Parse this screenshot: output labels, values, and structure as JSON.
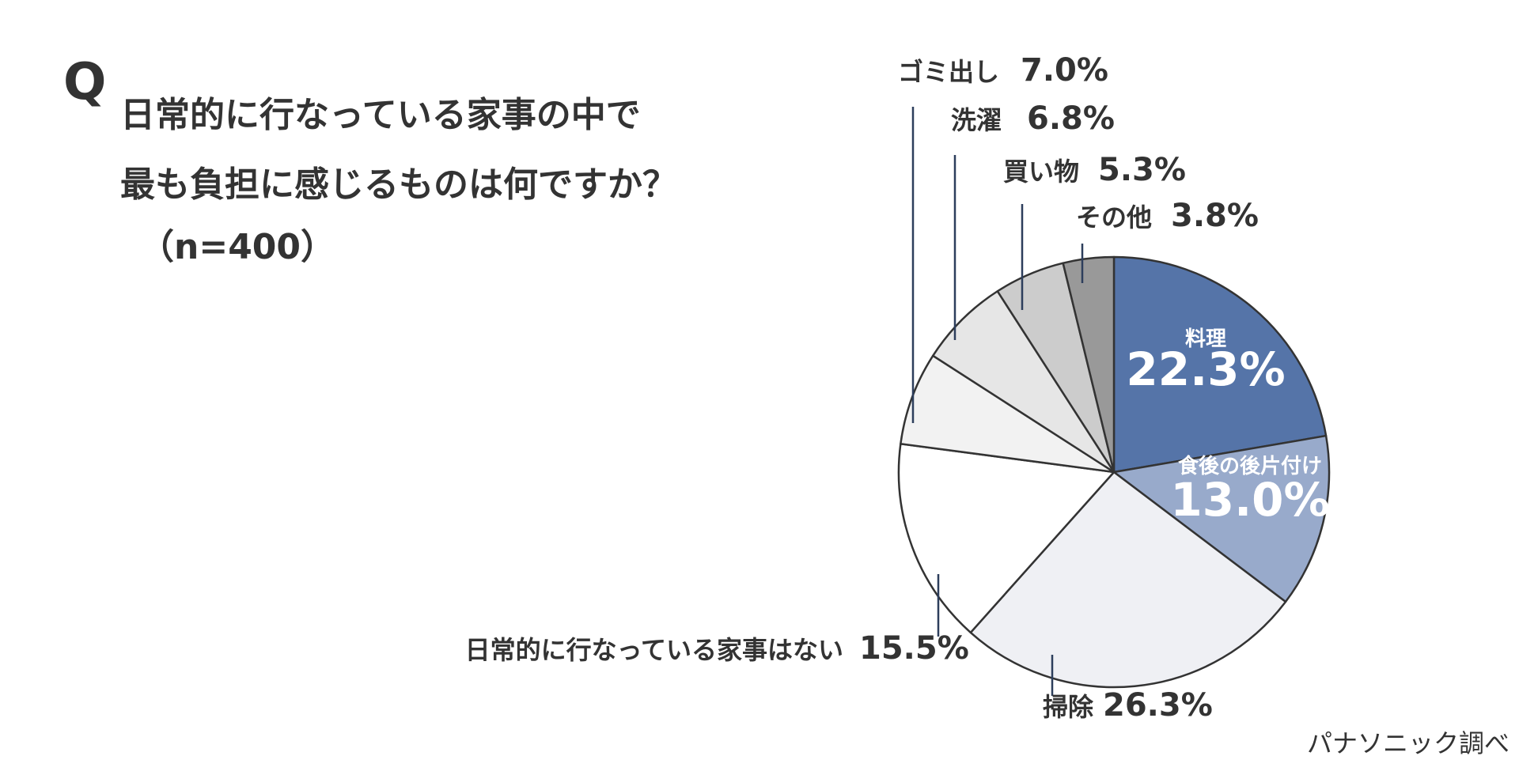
{
  "question": {
    "mark": "Q",
    "line1": "日常的に行なっている家事の中で",
    "line2": "最も負担に感じるものは何ですか？",
    "sample": "（n=400）"
  },
  "source": "パナソニック調べ",
  "chart_data": {
    "type": "pie",
    "start_angle_deg": 0,
    "direction": "clockwise",
    "slices": [
      {
        "label": "料理",
        "value": 22.3,
        "value_text": "22.3%",
        "color": "#5574a8",
        "label_position": "inside"
      },
      {
        "label": "食後の後片付け",
        "value": 13.0,
        "value_text": "13.0%",
        "color": "#98aacb",
        "label_position": "inside"
      },
      {
        "label": "掃除",
        "value": 26.3,
        "value_text": "26.3%",
        "color": "#eff0f4",
        "label_position": "outside"
      },
      {
        "label": "日常的に行なっている家事はない",
        "value": 15.5,
        "value_text": "15.5%",
        "color": "#ffffff",
        "label_position": "outside"
      },
      {
        "label": "ゴミ出し",
        "value": 7.0,
        "value_text": "7.0%",
        "color": "#f2f2f2",
        "label_position": "outside"
      },
      {
        "label": "洗濯",
        "value": 6.8,
        "value_text": "6.8%",
        "color": "#e6e6e6",
        "label_position": "outside"
      },
      {
        "label": "買い物",
        "value": 5.3,
        "value_text": "5.3%",
        "color": "#cccccc",
        "label_position": "outside"
      },
      {
        "label": "その他",
        "value": 3.8,
        "value_text": "3.8%",
        "color": "#999999",
        "label_position": "outside"
      }
    ],
    "stroke_color": "#333333",
    "leader_color": "#2d3e5c"
  }
}
